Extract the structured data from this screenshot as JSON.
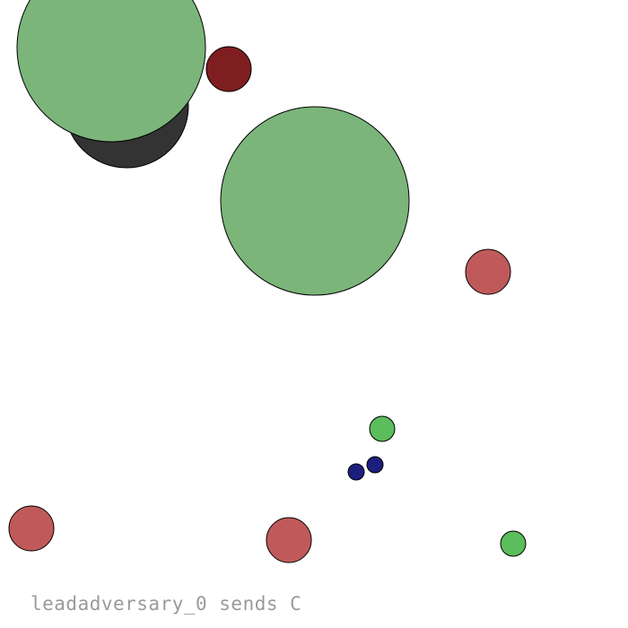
{
  "status": {
    "message": "leadadversary_0 sends C"
  },
  "palette": {
    "landmark_large": "#7bb57a",
    "obstacle_dark": "#333333",
    "adversary_leader": "#7e1e20",
    "adversary": "#c05a5a",
    "good_agent": "#5bbd5b",
    "food": "#1e1e7e",
    "outline": "#000000",
    "text": "#9a9a9a"
  },
  "entities": [
    {
      "name": "forest-dark-shadow",
      "kind": "obstacle",
      "color_key": "obstacle_dark"
    },
    {
      "name": "forest-large-top-left",
      "kind": "landmark",
      "color_key": "landmark_large"
    },
    {
      "name": "forest-large-center",
      "kind": "landmark",
      "color_key": "landmark_large"
    },
    {
      "name": "lead-adversary",
      "kind": "agent",
      "color_key": "adversary_leader"
    },
    {
      "name": "adversary-right",
      "kind": "agent",
      "color_key": "adversary"
    },
    {
      "name": "adversary-bottom-left",
      "kind": "agent",
      "color_key": "adversary"
    },
    {
      "name": "adversary-bottom-center",
      "kind": "agent",
      "color_key": "adversary"
    },
    {
      "name": "good-agent-center",
      "kind": "agent",
      "color_key": "good_agent"
    },
    {
      "name": "good-agent-bottom-right",
      "kind": "agent",
      "color_key": "good_agent"
    },
    {
      "name": "food-left",
      "kind": "food",
      "color_key": "food"
    },
    {
      "name": "food-right",
      "kind": "food",
      "color_key": "food"
    }
  ]
}
